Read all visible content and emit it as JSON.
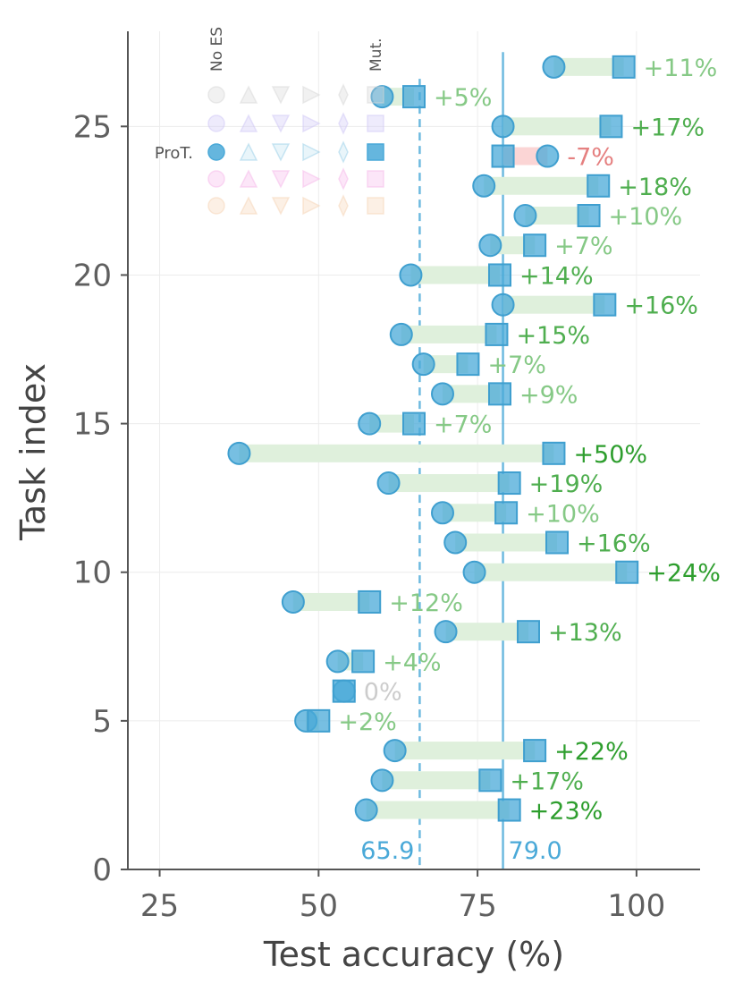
{
  "chart_data": {
    "type": "dumbbell",
    "xlabel": "Test accuracy (%)",
    "ylabel": "Task index",
    "xlim": [
      20,
      110
    ],
    "ylim": [
      0,
      28.2
    ],
    "x_ticks": [
      25,
      50,
      75,
      100
    ],
    "y_ticks": [
      0,
      5,
      10,
      15,
      20,
      25
    ],
    "grid": true,
    "reference_lines": [
      {
        "value": 65.9,
        "label": "65.9",
        "style": "dashed",
        "color": "#4aa9d8"
      },
      {
        "value": 79.0,
        "label": "79.0",
        "style": "solid",
        "color": "#4aa9d8"
      }
    ],
    "series": [
      {
        "name": "No ES",
        "marker": "circle"
      },
      {
        "name": "Mut.",
        "marker": "square"
      }
    ],
    "points": [
      {
        "task": 2,
        "no_es": 57.5,
        "mut": 80.0,
        "delta": "+23%"
      },
      {
        "task": 3,
        "no_es": 60.0,
        "mut": 77.0,
        "delta": "+17%"
      },
      {
        "task": 4,
        "no_es": 62.0,
        "mut": 84.0,
        "delta": "+22%"
      },
      {
        "task": 5,
        "no_es": 48.0,
        "mut": 50.0,
        "delta": "+2%"
      },
      {
        "task": 6,
        "no_es": 54.0,
        "mut": 54.0,
        "delta": "0%"
      },
      {
        "task": 7,
        "no_es": 53.0,
        "mut": 57.0,
        "delta": "+4%"
      },
      {
        "task": 8,
        "no_es": 70.0,
        "mut": 83.0,
        "delta": "+13%"
      },
      {
        "task": 9,
        "no_es": 46.0,
        "mut": 58.0,
        "delta": "+12%"
      },
      {
        "task": 10,
        "no_es": 74.5,
        "mut": 98.5,
        "delta": "+24%"
      },
      {
        "task": 11,
        "no_es": 71.5,
        "mut": 87.5,
        "delta": "+16%"
      },
      {
        "task": 12,
        "no_es": 69.5,
        "mut": 79.5,
        "delta": "+10%"
      },
      {
        "task": 13,
        "no_es": 61.0,
        "mut": 80.0,
        "delta": "+19%"
      },
      {
        "task": 14,
        "no_es": 37.5,
        "mut": 87.0,
        "delta": "+50%"
      },
      {
        "task": 15,
        "no_es": 58.0,
        "mut": 65.0,
        "delta": "+7%"
      },
      {
        "task": 16,
        "no_es": 69.5,
        "mut": 78.5,
        "delta": "+9%"
      },
      {
        "task": 17,
        "no_es": 66.5,
        "mut": 73.5,
        "delta": "+7%"
      },
      {
        "task": 18,
        "no_es": 63.0,
        "mut": 78.0,
        "delta": "+15%"
      },
      {
        "task": 19,
        "no_es": 79.0,
        "mut": 95.0,
        "delta": "+16%"
      },
      {
        "task": 20,
        "no_es": 64.5,
        "mut": 78.5,
        "delta": "+14%"
      },
      {
        "task": 21,
        "no_es": 77.0,
        "mut": 84.0,
        "delta": "+7%"
      },
      {
        "task": 22,
        "no_es": 82.5,
        "mut": 92.5,
        "delta": "+10%"
      },
      {
        "task": 23,
        "no_es": 76.0,
        "mut": 94.0,
        "delta": "+18%"
      },
      {
        "task": 24,
        "no_es": 86.0,
        "mut": 79.0,
        "delta": "-7%"
      },
      {
        "task": 25,
        "no_es": 79.0,
        "mut": 96.0,
        "delta": "+17%"
      },
      {
        "task": 26,
        "no_es": 60.0,
        "mut": 65.0,
        "delta": "+5%"
      },
      {
        "task": 27,
        "no_es": 87.0,
        "mut": 98.0,
        "delta": "+11%"
      }
    ],
    "legend": {
      "column_headers": [
        "No ES",
        "Mut."
      ],
      "rows": [
        "",
        "",
        "ProT.",
        "",
        ""
      ],
      "active_row": 2,
      "row_colors": [
        "#d8d8d8",
        "#cfc7f5",
        "#4aa9d8",
        "#f5b8ea",
        "#f5d3b5"
      ],
      "marker_columns": [
        "circle",
        "triangle-up",
        "triangle-down",
        "triangle-right",
        "thin-diamond",
        "square"
      ],
      "placement": "top-left"
    }
  },
  "colors": {
    "marker": "#4aa9d8",
    "marker_stroke": "#3f9fcf",
    "improve_bar": "#dff0dc",
    "decline_bar": "#fbd5d5",
    "improve_text_strong": "#2e9e2e",
    "improve_text_mid": "#4fae4f",
    "improve_text_light": "#86c986",
    "decline_text": "#e58080",
    "zero_text": "#cccccc",
    "axis": "#555555",
    "grid": "#ececec"
  }
}
